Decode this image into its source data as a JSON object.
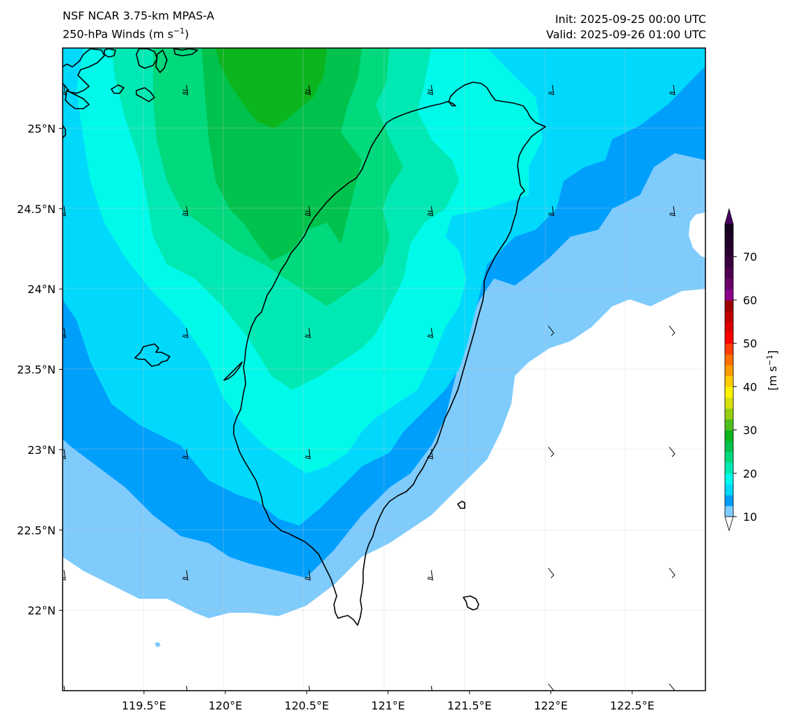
{
  "header": {
    "model": "NSF NCAR 3.75-km MPAS-A",
    "field": "250-hPa Winds (m s",
    "field_sup": "−1",
    "field_close": ")",
    "init": "Init: 2025-09-25 00:00 UTC",
    "valid": "Valid: 2025-09-26 01:00 UTC"
  },
  "map": {
    "lon_range": [
      119.0,
      122.95
    ],
    "lat_range": [
      21.5,
      25.5
    ],
    "lon_ticks": [
      {
        "value": 119.5,
        "label": "119.5°E"
      },
      {
        "value": 120.0,
        "label": "120°E"
      },
      {
        "value": 120.5,
        "label": "120.5°E"
      },
      {
        "value": 121.0,
        "label": "121°E"
      },
      {
        "value": 121.5,
        "label": "121.5°E"
      },
      {
        "value": 122.0,
        "label": "122°E"
      },
      {
        "value": 122.5,
        "label": "122.5°E"
      }
    ],
    "lat_ticks": [
      {
        "value": 25.0,
        "label": "25°N"
      },
      {
        "value": 24.5,
        "label": "24.5°N"
      },
      {
        "value": 24.0,
        "label": "24°N"
      },
      {
        "value": 23.5,
        "label": "23.5°N"
      },
      {
        "value": 23.0,
        "label": "23°N"
      },
      {
        "value": 22.5,
        "label": "22.5°N"
      },
      {
        "value": 22.0,
        "label": "22°N"
      }
    ],
    "shading_colors": {
      "below_10": "#ffffff",
      "10_to_12.5": "#7ecbfc",
      "12.5_to_15": "#009ffc",
      "15_to_17.5": "#00d9fc",
      "17.5_to_20": "#00faea",
      "20_to_22.5": "#00e9b4",
      "22.5_to_25": "#00d97c",
      "25_to_27.5": "#00c24c",
      "27.5_to_30": "#0ab51e"
    },
    "coastline_color": "#000000"
  },
  "colorbar": {
    "unit_label": "[m s",
    "unit_sup": "−1",
    "unit_close": "]",
    "min": 10,
    "max": 77.5,
    "tick_values": [
      10,
      20,
      30,
      40,
      50,
      60,
      70
    ],
    "tick_labels": [
      "10",
      "20",
      "30",
      "40",
      "50",
      "60",
      "70"
    ],
    "colors": [
      "#7ecbfc",
      "#009ffc",
      "#00d9fc",
      "#00faea",
      "#00e9b4",
      "#00d97c",
      "#00c24c",
      "#0ab51e",
      "#4fbe1b",
      "#96cf11",
      "#d7e00a",
      "#fff200",
      "#ffcc00",
      "#ff9d00",
      "#ff6e00",
      "#ff3d00",
      "#ff0000",
      "#dd0000",
      "#c00000",
      "#9c0000",
      "#8b008b",
      "#6b006b",
      "#4f0050",
      "#3a0040",
      "#2a0030",
      "#200028",
      "#180020"
    ],
    "extend_low_color": "#ffffff",
    "extend_high_color": "#4b0066"
  }
}
